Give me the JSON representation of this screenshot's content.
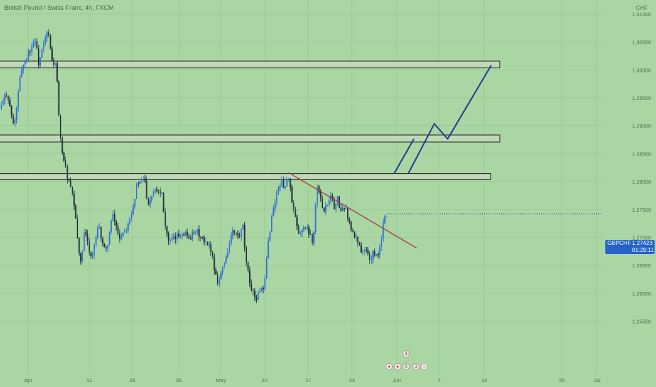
{
  "header": {
    "title": "British Pound / Swiss Franc, 4h, FXCM"
  },
  "axis_unit": "CHF",
  "last_price": {
    "symbol": "GBPCHF",
    "value": "1.27423",
    "countdown": "01:29:11"
  },
  "events": {
    "top_count": "4",
    "left_count": "5",
    "right_count": "3"
  },
  "colors": {
    "background": "#a9d6a2",
    "candle_up": "#2f6fd6",
    "candle_down": "#1f2a3a",
    "zone_fill": "#bfd9b6",
    "zone_border": "#1a1a1a",
    "trendline": "#a83a3a",
    "projection": "#1d3f8f",
    "price_tag": "#2563c9"
  },
  "chart_data": {
    "type": "candlestick",
    "title": "British Pound / Swiss Franc, 4h, FXCM",
    "ylim": [
      1.2455,
      1.3125
    ],
    "y_ticks": [
      "1.31000",
      "1.30500",
      "1.30000",
      "1.29500",
      "1.29000",
      "1.28500",
      "1.28000",
      "1.27500",
      "1.27000",
      "1.26500",
      "1.26000",
      "1.25500"
    ],
    "x_ticks": [
      "Apr",
      "12",
      "19",
      "26",
      "May",
      "10",
      "17",
      "24",
      "Jun",
      "7",
      "14",
      "25",
      "Jul"
    ],
    "grid": true,
    "price_path": [
      [
        0,
        1.293
      ],
      [
        10,
        1.296
      ],
      [
        20,
        1.2895
      ],
      [
        30,
        1.3
      ],
      [
        40,
        1.303
      ],
      [
        50,
        1.3055
      ],
      [
        55,
        1.301
      ],
      [
        62,
        1.3045
      ],
      [
        68,
        1.307
      ],
      [
        74,
        1.3015
      ],
      [
        80,
        1.3008
      ],
      [
        85,
        1.288
      ],
      [
        90,
        1.2845
      ],
      [
        95,
        1.281
      ],
      [
        100,
        1.279
      ],
      [
        105,
        1.276
      ],
      [
        110,
        1.27
      ],
      [
        115,
        1.265
      ],
      [
        120,
        1.271
      ],
      [
        125,
        1.269
      ],
      [
        130,
        1.266
      ],
      [
        140,
        1.272
      ],
      [
        150,
        1.267
      ],
      [
        160,
        1.274
      ],
      [
        170,
        1.27
      ],
      [
        180,
        1.272
      ],
      [
        190,
        1.276
      ],
      [
        195,
        1.28
      ],
      [
        200,
        1.2795
      ],
      [
        205,
        1.281
      ],
      [
        210,
        1.276
      ],
      [
        220,
        1.279
      ],
      [
        230,
        1.278
      ],
      [
        235,
        1.272
      ],
      [
        240,
        1.269
      ],
      [
        250,
        1.27
      ],
      [
        260,
        1.271
      ],
      [
        270,
        1.27
      ],
      [
        280,
        1.271
      ],
      [
        290,
        1.269
      ],
      [
        300,
        1.268
      ],
      [
        305,
        1.264
      ],
      [
        310,
        1.262
      ],
      [
        320,
        1.266
      ],
      [
        330,
        1.271
      ],
      [
        340,
        1.27
      ],
      [
        345,
        1.272
      ],
      [
        350,
        1.265
      ],
      [
        355,
        1.262
      ],
      [
        360,
        1.26
      ],
      [
        365,
        1.259
      ],
      [
        370,
        1.261
      ],
      [
        375,
        1.26
      ],
      [
        380,
        1.268
      ],
      [
        385,
        1.273
      ],
      [
        390,
        1.276
      ],
      [
        395,
        1.279
      ],
      [
        400,
        1.28
      ],
      [
        405,
        1.279
      ],
      [
        410,
        1.281
      ],
      [
        415,
        1.276
      ],
      [
        420,
        1.273
      ],
      [
        425,
        1.27
      ],
      [
        430,
        1.272
      ],
      [
        440,
        1.271
      ],
      [
        445,
        1.269
      ],
      [
        450,
        1.2795
      ],
      [
        455,
        1.277
      ],
      [
        460,
        1.275
      ],
      [
        465,
        1.276
      ],
      [
        470,
        1.278
      ],
      [
        475,
        1.275
      ],
      [
        480,
        1.277
      ],
      [
        485,
        1.274
      ],
      [
        490,
        1.276
      ],
      [
        495,
        1.273
      ],
      [
        500,
        1.271
      ],
      [
        505,
        1.27
      ],
      [
        510,
        1.269
      ],
      [
        515,
        1.267
      ],
      [
        520,
        1.268
      ],
      [
        525,
        1.266
      ],
      [
        530,
        1.267
      ],
      [
        535,
        1.2665
      ],
      [
        540,
        1.268
      ],
      [
        545,
        1.273
      ],
      [
        550,
        1.2742
      ]
    ],
    "zones": [
      {
        "low": 1.30035,
        "high": 1.30155,
        "x_end": 710
      },
      {
        "low": 1.28707,
        "high": 1.28833,
        "x_end": 710
      },
      {
        "low": 1.28033,
        "high": 1.28144,
        "x_end": 697
      }
    ],
    "trendline": {
      "x": [
        410,
        592
      ],
      "y": [
        1.2816,
        1.2681
      ]
    },
    "projection": {
      "x": [
        560,
        588,
        580,
        617,
        636,
        698
      ],
      "y": [
        1.28144,
        1.28764,
        1.28144,
        1.29034,
        1.28764,
        1.30083
      ]
    }
  }
}
